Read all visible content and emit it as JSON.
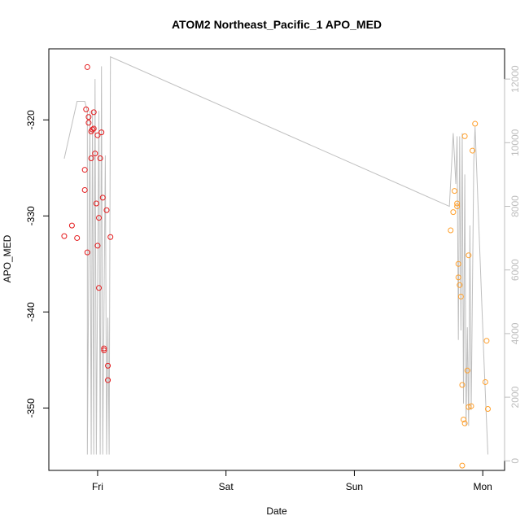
{
  "chart_data": {
    "type": "scatter",
    "title": "ATOM2 Northeast_Pacific_1 APO_MED",
    "xlabel": "Date",
    "ylabel": "APO_MED",
    "x_ticks": [
      {
        "label": "Fri",
        "value": 0.0
      },
      {
        "label": "Sat",
        "value": 1.0
      },
      {
        "label": "Sun",
        "value": 2.0
      },
      {
        "label": "Mon",
        "value": 3.0
      }
    ],
    "xlim": [
      -0.38,
      3.17
    ],
    "y_ticks": [
      -350,
      -340,
      -330,
      -320
    ],
    "ylim": [
      -356.5,
      -312.6
    ],
    "y2_ticks": [
      0,
      2000,
      4000,
      6000,
      8000,
      10000,
      12000
    ],
    "y2lim": [
      -300,
      12950
    ],
    "colors": {
      "series1": "#e41a1c",
      "series2": "#ff9f2a",
      "line": "#bfbfbf",
      "axis": "#000000",
      "right_axis": "#bdbdbd"
    },
    "series": [
      {
        "color": "#e41a1c",
        "points": [
          [
            -0.26,
            -332.1
          ],
          [
            -0.2,
            -331.0
          ],
          [
            -0.16,
            -332.3
          ],
          [
            -0.1,
            -325.2
          ],
          [
            -0.1,
            -327.3
          ],
          [
            -0.09,
            -318.9
          ],
          [
            -0.08,
            -333.8
          ],
          [
            -0.08,
            -314.5
          ],
          [
            -0.07,
            -319.7
          ],
          [
            -0.07,
            -320.3
          ],
          [
            -0.05,
            -324.0
          ],
          [
            -0.05,
            -321.2
          ],
          [
            -0.04,
            -321.0
          ],
          [
            -0.03,
            -319.2
          ],
          [
            -0.03,
            -320.9
          ],
          [
            -0.02,
            -323.5
          ],
          [
            -0.01,
            -328.7
          ],
          [
            0.0,
            -321.6
          ],
          [
            0.0,
            -333.1
          ],
          [
            0.01,
            -337.5
          ],
          [
            0.01,
            -330.2
          ],
          [
            0.02,
            -324.0
          ],
          [
            0.03,
            -321.3
          ],
          [
            0.04,
            -328.1
          ],
          [
            0.05,
            -344.0
          ],
          [
            0.05,
            -343.8
          ],
          [
            0.07,
            -329.4
          ],
          [
            0.08,
            -345.6
          ],
          [
            0.08,
            -347.1
          ],
          [
            0.1,
            -332.2
          ]
        ]
      },
      {
        "color": "#ff9f2a",
        "points": [
          [
            2.75,
            -331.5
          ],
          [
            2.77,
            -329.6
          ],
          [
            2.78,
            -327.4
          ],
          [
            2.8,
            -328.7
          ],
          [
            2.8,
            -329.0
          ],
          [
            2.81,
            -336.4
          ],
          [
            2.81,
            -335.0
          ],
          [
            2.82,
            -337.2
          ],
          [
            2.83,
            -338.4
          ],
          [
            2.84,
            -347.6
          ],
          [
            2.84,
            -356.0
          ],
          [
            2.85,
            -351.2
          ],
          [
            2.86,
            -321.7
          ],
          [
            2.86,
            -351.6
          ],
          [
            2.88,
            -346.1
          ],
          [
            2.89,
            -349.9
          ],
          [
            2.89,
            -334.1
          ],
          [
            2.91,
            -349.8
          ],
          [
            2.92,
            -323.2
          ],
          [
            2.94,
            -320.4
          ],
          [
            3.02,
            -347.3
          ],
          [
            3.03,
            -343.0
          ],
          [
            3.04,
            -350.1
          ]
        ]
      }
    ],
    "line_y2": [
      [
        -0.26,
        9500
      ],
      [
        -0.16,
        11300
      ],
      [
        -0.1,
        11300
      ],
      [
        -0.08,
        11000
      ],
      [
        -0.08,
        200
      ],
      [
        -0.06,
        11000
      ],
      [
        -0.05,
        200
      ],
      [
        -0.04,
        11000
      ],
      [
        -0.03,
        200
      ],
      [
        -0.02,
        12000
      ],
      [
        -0.01,
        200
      ],
      [
        0.01,
        11000
      ],
      [
        0.02,
        200
      ],
      [
        0.03,
        12400
      ],
      [
        0.04,
        200
      ],
      [
        0.06,
        9600
      ],
      [
        0.07,
        200
      ],
      [
        0.08,
        4500
      ],
      [
        0.09,
        200
      ],
      [
        0.1,
        12700
      ],
      [
        2.74,
        8000
      ],
      [
        2.77,
        10300
      ],
      [
        2.79,
        8700
      ],
      [
        2.8,
        10200
      ],
      [
        2.81,
        3800
      ],
      [
        2.82,
        10200
      ],
      [
        2.83,
        4100
      ],
      [
        2.84,
        10300
      ],
      [
        2.85,
        1800
      ],
      [
        2.86,
        9000
      ],
      [
        2.87,
        1100
      ],
      [
        2.88,
        4200
      ],
      [
        2.89,
        1100
      ],
      [
        2.9,
        7400
      ],
      [
        2.91,
        1600
      ],
      [
        2.93,
        9400
      ],
      [
        2.94,
        10500
      ],
      [
        3.01,
        3100
      ],
      [
        3.04,
        200
      ]
    ]
  }
}
